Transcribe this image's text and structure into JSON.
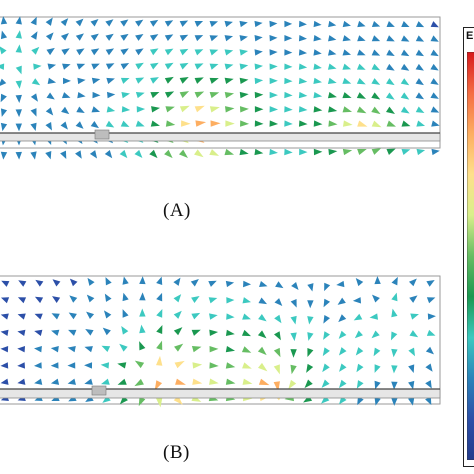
{
  "figure": {
    "panels": [
      {
        "id": "A",
        "caption": "(A)"
      },
      {
        "id": "B",
        "caption": "(B)"
      }
    ],
    "legend": {
      "title_fragment": "E",
      "colorscale": [
        "#d7191c",
        "#f46d43",
        "#fdae61",
        "#fee08b",
        "#d9ef8b",
        "#66bd63",
        "#1a9850",
        "#3cc9c0",
        "#2b83ba",
        "#2c4fa8",
        "#233b8c"
      ]
    }
  }
}
